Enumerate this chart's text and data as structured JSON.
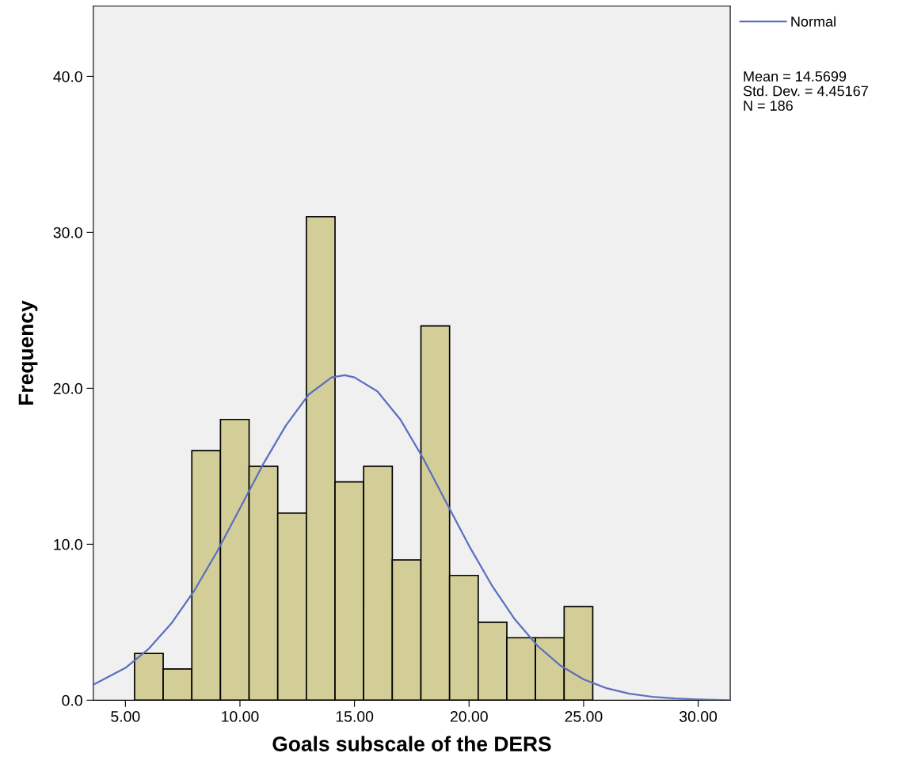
{
  "chart_data": {
    "type": "histogram",
    "xlabel": "Goals subscale of the DERS",
    "ylabel": "Frequency",
    "bins": [
      5.4,
      6.65,
      7.9,
      9.15,
      10.4,
      11.65,
      12.9,
      14.15,
      15.4,
      16.65,
      17.9,
      19.15,
      20.4,
      21.65,
      22.9,
      24.15,
      25.4
    ],
    "values": [
      3,
      2,
      16,
      18,
      15,
      12,
      31,
      14,
      15,
      9,
      24,
      8,
      5,
      4,
      4,
      6
    ],
    "color": "#d3ce97",
    "series": [
      {
        "type": "line",
        "name": "Normal",
        "color": "#5b6fbf",
        "x": [
          3.6,
          5,
          6,
          7,
          8,
          9,
          10,
          11,
          12,
          13,
          14,
          14.57,
          15,
          16,
          17,
          18,
          19,
          20,
          21,
          22,
          23,
          24,
          25,
          26,
          27,
          28,
          29,
          30,
          31.4
        ],
        "values": [
          1.0,
          2.07,
          3.27,
          4.91,
          7.01,
          9.52,
          12.3,
          15.1,
          17.6,
          19.6,
          20.7,
          20.84,
          20.7,
          19.8,
          18.0,
          15.5,
          12.7,
          9.9,
          7.35,
          5.18,
          3.47,
          2.21,
          1.34,
          0.77,
          0.42,
          0.22,
          0.11,
          0.05,
          0.0
        ]
      }
    ],
    "xlim": [
      3.6,
      31.4
    ],
    "ylim": [
      0,
      44.5
    ],
    "xticks": [
      {
        "value": 5,
        "label": "5.00"
      },
      {
        "value": 10,
        "label": "10.00"
      },
      {
        "value": 15,
        "label": "15.00"
      },
      {
        "value": 20,
        "label": "20.00"
      },
      {
        "value": 25,
        "label": "25.00"
      },
      {
        "value": 30,
        "label": "30.00"
      }
    ],
    "yticks": [
      {
        "value": 0,
        "label": "0.0"
      },
      {
        "value": 10,
        "label": "10.0"
      },
      {
        "value": 20,
        "label": "20.0"
      },
      {
        "value": 30,
        "label": "30.0"
      },
      {
        "value": 40,
        "label": "40.0"
      }
    ],
    "legend": "top right",
    "annotations": [
      "Mean = 14.5699",
      "Std. Dev. = 4.45167",
      "N = 186"
    ]
  }
}
